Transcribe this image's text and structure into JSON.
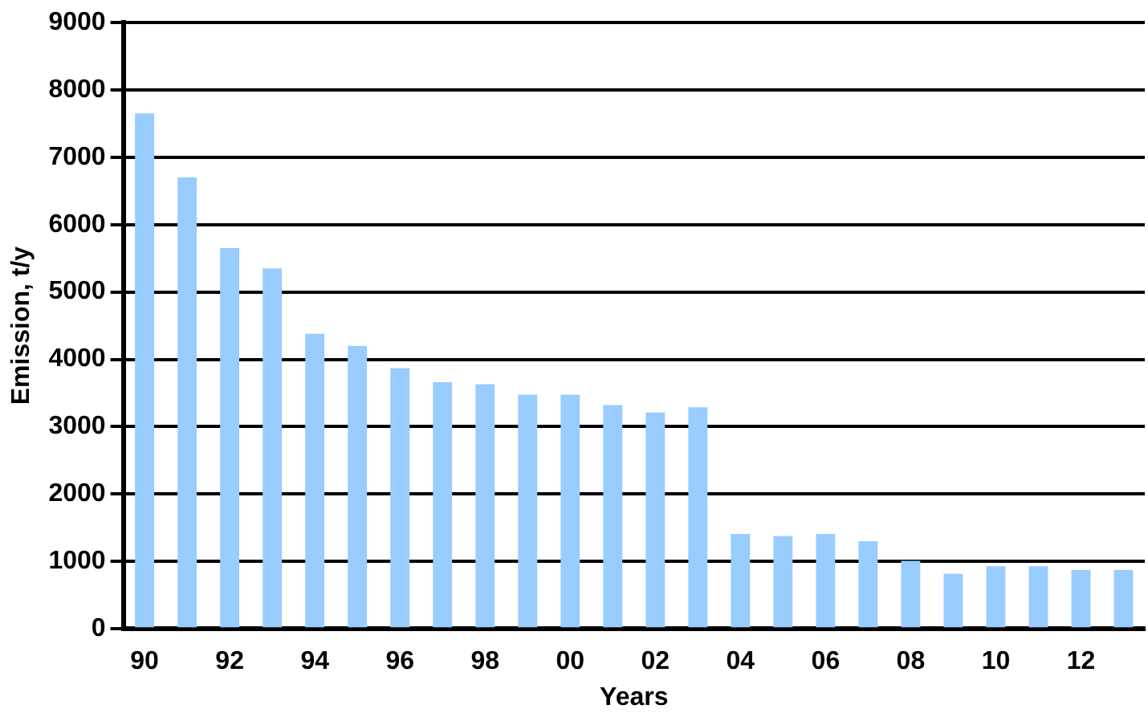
{
  "chart_data": {
    "type": "bar",
    "xlabel": "Years",
    "ylabel": "Emission, t/y",
    "categories": [
      "90",
      null,
      "92",
      null,
      "94",
      null,
      "96",
      null,
      "98",
      null,
      "00",
      null,
      "02",
      null,
      "04",
      null,
      "06",
      null,
      "08",
      null,
      "10",
      null,
      "12",
      null
    ],
    "values": [
      7650,
      6700,
      5650,
      5350,
      4380,
      4200,
      3870,
      3660,
      3630,
      3475,
      3475,
      3320,
      3210,
      3290,
      1410,
      1380,
      1410,
      1300,
      1010,
      820,
      930,
      930,
      875,
      875
    ],
    "color": "#99ccff",
    "ylim": [
      0,
      9000
    ],
    "yticks": [
      0,
      1000,
      2000,
      3000,
      4000,
      5000,
      6000,
      7000,
      8000,
      9000
    ],
    "grid": "y"
  }
}
